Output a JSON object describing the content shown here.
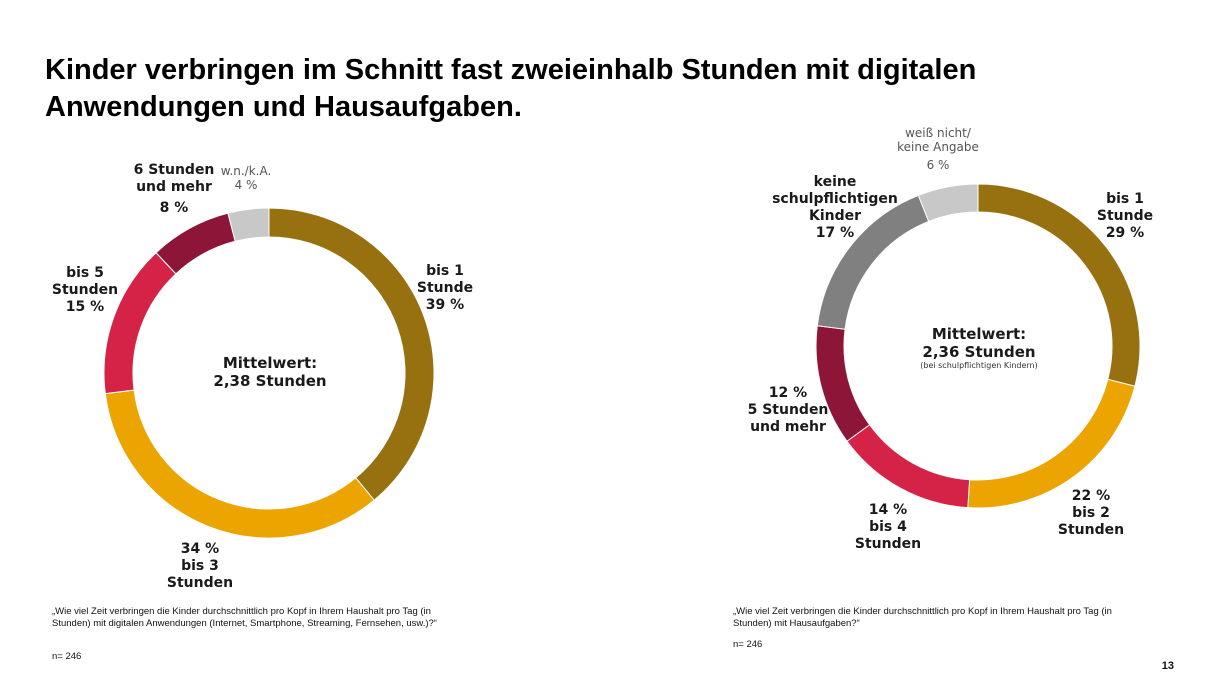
{
  "title": "Kinder verbringen im Schnitt fast zweieinhalb Stunden mit digitalen Anwendungen und Hausaufgaben.",
  "page_number": "13",
  "chart_data": [
    {
      "type": "pie",
      "variant": "donut",
      "center_label": "Mittelwert:",
      "center_value": "2,38 Stunden",
      "question": "„Wie viel Zeit verbringen die Kinder durchschnittlich pro Kopf in Ihrem Haushalt pro Tag (in Stunden) mit digitalen Anwendungen (Internet, Smartphone, Streaming, Fernsehen, usw.)?“",
      "n": "n= 246",
      "slices": [
        {
          "name": "bis 1 Stunde",
          "value": 39,
          "line1": "bis 1",
          "line2": "Stunde",
          "pct": "39 %",
          "color": "#97700f"
        },
        {
          "name": "bis 3 Stunden",
          "value": 34,
          "line1": "34 %",
          "line2": "bis 3",
          "line3": "Stunden",
          "color": "#eca400"
        },
        {
          "name": "bis 5 Stunden",
          "value": 15,
          "line1": "bis 5",
          "line2": "Stunden",
          "pct": "15 %",
          "color": "#d42346"
        },
        {
          "name": "6 Stunden und mehr",
          "value": 8,
          "line1": "6 Stunden",
          "line2": "und mehr",
          "pct": "8 %",
          "color": "#8d1538"
        },
        {
          "name": "w.n./k.A.",
          "value": 4,
          "line1": "w.n./k.A.",
          "pct": "4 %",
          "color": "#c8c8c8"
        }
      ]
    },
    {
      "type": "pie",
      "variant": "donut",
      "center_label": "Mittelwert:",
      "center_value": "2,36 Stunden",
      "center_note": "(bei schulpflichtigen Kindern)",
      "question": "„Wie viel Zeit verbringen die Kinder durchschnittlich pro Kopf in Ihrem Haushalt pro Tag (in Stunden) mit Hausaufgaben?“",
      "n": "n= 246",
      "slices": [
        {
          "name": "bis 1 Stunde",
          "value": 29,
          "line1": "bis 1",
          "line2": "Stunde",
          "pct": "29 %",
          "color": "#97700f"
        },
        {
          "name": "bis 2 Stunden",
          "value": 22,
          "line1": "22 %",
          "line2": "bis 2",
          "line3": "Stunden",
          "color": "#eca400"
        },
        {
          "name": "bis 4 Stunden",
          "value": 14,
          "line1": "14 %",
          "line2": "bis 4",
          "line3": "Stunden",
          "color": "#d42346"
        },
        {
          "name": "5 Stunden und mehr",
          "value": 12,
          "line1": "12 %",
          "line2": "5 Stunden",
          "line3": "und mehr",
          "color": "#8d1538"
        },
        {
          "name": "keine schulpflichtigen Kinder",
          "value": 17,
          "line1": "keine",
          "line2": "schulpflichtigen",
          "line3": "Kinder",
          "pct": "17 %",
          "color": "#808080"
        },
        {
          "name": "weiß nicht/keine Angabe",
          "value": 6,
          "line1": "weiß nicht/",
          "line2": "keine Angabe",
          "pct": "6 %",
          "color": "#c8c8c8"
        }
      ]
    }
  ]
}
